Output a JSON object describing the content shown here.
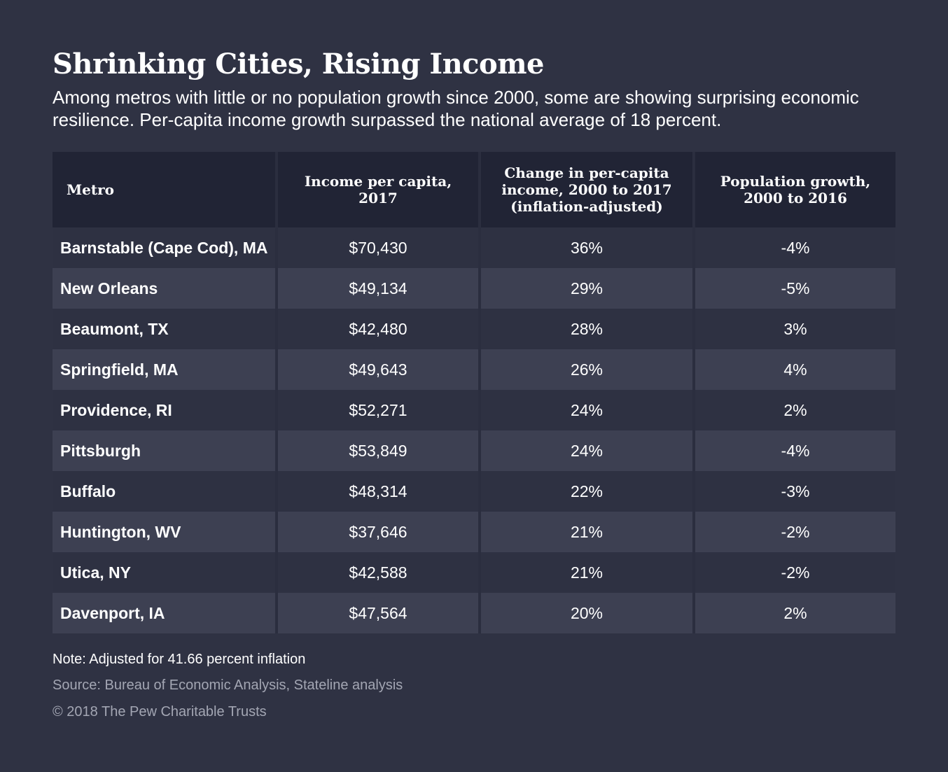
{
  "chart_data": {
    "type": "table",
    "title": "Shrinking Cities, Rising Income",
    "subtitle": "Among metros with little or no population growth since 2000, some are showing surprising economic resilience. Per-capita income growth surpassed the national average of 18 percent.",
    "columns": [
      "Metro",
      "Income per capita, 2017",
      "Change in per-capita income, 2000 to 2017 (inflation-adjusted)",
      "Population growth, 2000 to 2016"
    ],
    "rows": [
      [
        "Barnstable (Cape Cod), MA",
        "$70,430",
        "36%",
        "-4%"
      ],
      [
        "New Orleans",
        "$49,134",
        "29%",
        "-5%"
      ],
      [
        "Beaumont, TX",
        "$42,480",
        "28%",
        "3%"
      ],
      [
        "Springfield, MA",
        "$49,643",
        "26%",
        "4%"
      ],
      [
        "Providence, RI",
        "$52,271",
        "24%",
        "2%"
      ],
      [
        "Pittsburgh",
        "$53,849",
        "24%",
        "-4%"
      ],
      [
        "Buffalo",
        "$48,314",
        "22%",
        "-3%"
      ],
      [
        "Huntington, WV",
        "$37,646",
        "21%",
        "-2%"
      ],
      [
        "Utica, NY",
        "$42,588",
        "21%",
        "-2%"
      ],
      [
        "Davenport, IA",
        "$47,564",
        "20%",
        "2%"
      ]
    ],
    "note": "Note: Adjusted for 41.66 percent inflation",
    "source": "Source: Bureau of Economic Analysis, Stateline analysis",
    "copyright": "© 2018 The Pew Charitable Trusts"
  },
  "colors": {
    "background": "#2f3243",
    "header_row": "#212435",
    "row_light": "#3d4052",
    "row_dark": "#2e3142",
    "muted_text": "#a3a6b3"
  }
}
